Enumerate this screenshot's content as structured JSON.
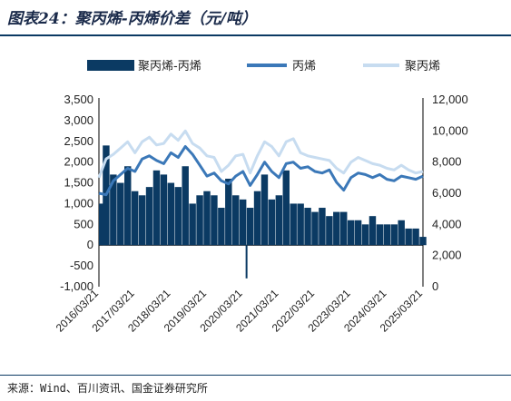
{
  "title": "图表24：聚丙烯-丙烯价差（元/吨）",
  "source": "来源：Wind、百川资讯、国金证券研究所",
  "colors": {
    "spread": "#0b3a63",
    "propylene": "#3b78b8",
    "pp": "#c7dcf0"
  },
  "chart_data": {
    "type": "bar+line",
    "x_ticks": [
      "2016/03/21",
      "2017/03/21",
      "2018/03/21",
      "2019/03/21",
      "2020/03/21",
      "2021/03/21",
      "2022/03/21",
      "2023/03/21",
      "2024/03/21",
      "2025/03/21"
    ],
    "y_left": {
      "ylim": [
        -1000,
        3500
      ],
      "ticks": [
        "3,500",
        "3,000",
        "2,500",
        "2,000",
        "1,500",
        "1,000",
        "500",
        "0",
        "-500",
        "-1,000"
      ]
    },
    "y_right": {
      "ylim": [
        0,
        12000
      ],
      "ticks": [
        "12,000",
        "10,000",
        "8,000",
        "6,000",
        "4,000",
        "2,000",
        "0"
      ]
    },
    "legend": {
      "position": "top",
      "entries": [
        "聚丙烯-丙烯",
        "丙烯",
        "聚丙烯"
      ]
    },
    "series": [
      {
        "name": "聚丙烯-丙烯",
        "type": "bar",
        "axis": "left",
        "t": [
          0,
          0.2,
          0.4,
          0.6,
          0.8,
          1.0,
          1.2,
          1.4,
          1.6,
          1.8,
          2.0,
          2.2,
          2.4,
          2.6,
          2.8,
          3.0,
          3.2,
          3.4,
          3.6,
          3.8,
          4.0,
          4.1,
          4.2,
          4.4,
          4.6,
          4.8,
          5.0,
          5.2,
          5.4,
          5.6,
          5.8,
          6.0,
          6.2,
          6.4,
          6.6,
          6.8,
          7.0,
          7.2,
          7.4,
          7.6,
          7.8,
          8.0,
          8.2,
          8.4,
          8.6,
          8.8,
          9.0
        ],
        "values": [
          1000,
          2400,
          1700,
          1500,
          1900,
          1300,
          1200,
          1400,
          1800,
          1700,
          1500,
          1400,
          1900,
          1000,
          1200,
          1300,
          1200,
          900,
          1600,
          1200,
          1100,
          -800,
          900,
          1300,
          1700,
          1100,
          1200,
          1800,
          1000,
          1000,
          900,
          800,
          900,
          700,
          800,
          800,
          600,
          600,
          500,
          700,
          500,
          500,
          500,
          600,
          400,
          400,
          200
        ]
      },
      {
        "name": "丙烯",
        "type": "line",
        "axis": "right",
        "t": [
          0,
          0.2,
          0.4,
          0.6,
          0.8,
          1.0,
          1.2,
          1.4,
          1.6,
          1.8,
          2.0,
          2.2,
          2.4,
          2.6,
          2.8,
          3.0,
          3.2,
          3.4,
          3.6,
          3.8,
          4.0,
          4.2,
          4.4,
          4.6,
          4.8,
          5.0,
          5.2,
          5.4,
          5.6,
          5.8,
          6.0,
          6.2,
          6.4,
          6.6,
          6.8,
          7.0,
          7.2,
          7.4,
          7.6,
          7.8,
          8.0,
          8.2,
          8.4,
          8.6,
          8.8,
          9.0
        ],
        "values": [
          6000,
          5900,
          6800,
          7200,
          7600,
          7400,
          8200,
          8400,
          8100,
          7900,
          8600,
          8300,
          9000,
          8500,
          7800,
          7100,
          7300,
          6800,
          6600,
          7100,
          7400,
          6500,
          7200,
          8000,
          7400,
          7000,
          7900,
          8000,
          7600,
          7700,
          7400,
          7300,
          7500,
          6700,
          6200,
          7000,
          7300,
          7200,
          7000,
          7200,
          6900,
          6800,
          7100,
          7000,
          6900,
          7100
        ]
      },
      {
        "name": "聚丙烯",
        "type": "line",
        "axis": "right",
        "t": [
          0,
          0.2,
          0.4,
          0.6,
          0.8,
          1.0,
          1.2,
          1.4,
          1.6,
          1.8,
          2.0,
          2.2,
          2.4,
          2.6,
          2.8,
          3.0,
          3.2,
          3.4,
          3.6,
          3.8,
          4.0,
          4.2,
          4.4,
          4.6,
          4.8,
          5.0,
          5.2,
          5.4,
          5.6,
          5.8,
          6.0,
          6.2,
          6.4,
          6.6,
          6.8,
          7.0,
          7.2,
          7.4,
          7.6,
          7.8,
          8.0,
          8.2,
          8.4,
          8.6,
          8.8,
          9.0
        ],
        "values": [
          7000,
          8200,
          8500,
          8900,
          9300,
          8600,
          9300,
          9600,
          9100,
          9200,
          9800,
          9400,
          10000,
          9200,
          8900,
          8400,
          8300,
          7400,
          7800,
          8400,
          8500,
          7300,
          8400,
          9300,
          9000,
          8400,
          9300,
          9500,
          8600,
          8400,
          8300,
          8200,
          8100,
          7600,
          7300,
          8000,
          8300,
          8100,
          7900,
          7800,
          7600,
          7500,
          7800,
          7500,
          7300,
          7400
        ]
      }
    ]
  }
}
